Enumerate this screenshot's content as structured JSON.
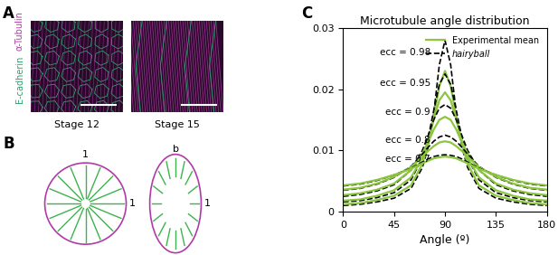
{
  "chart_data": {
    "type": "line",
    "title": "Microtubule angle distribution",
    "x_label": "Angle (º)",
    "x": [
      0,
      15,
      30,
      45,
      60,
      70,
      75,
      80,
      85,
      90,
      95,
      100,
      105,
      110,
      120,
      135,
      150,
      165,
      180
    ],
    "xlim": [
      0,
      180
    ],
    "xticks": [
      0,
      45,
      90,
      135,
      180
    ],
    "ylim": [
      0,
      0.03
    ],
    "yticks": [
      0,
      0.01,
      0.02,
      0.03
    ],
    "legend": "upper right",
    "annotations": [
      "ecc = 0.98",
      "ecc = 0.95",
      "ecc = 0.9",
      "ecc = 0.8",
      "ecc = 0.7"
    ],
    "series": [
      {
        "name": "hairyball",
        "color": "#000000",
        "line_style": "dashed",
        "values": [
          0.001,
          0.0012,
          0.0016,
          0.0022,
          0.0038,
          0.0072,
          0.0105,
          0.016,
          0.024,
          0.028,
          0.024,
          0.016,
          0.0105,
          0.0072,
          0.0038,
          0.0022,
          0.0016,
          0.0012,
          0.001
        ]
      },
      {
        "name": "Experimental mean",
        "color": "#8cc63f",
        "line_style": "solid",
        "values": [
          0.0012,
          0.0014,
          0.0019,
          0.0026,
          0.0043,
          0.0078,
          0.011,
          0.0155,
          0.0205,
          0.023,
          0.0205,
          0.0155,
          0.011,
          0.0078,
          0.0043,
          0.0026,
          0.0019,
          0.0014,
          0.0012
        ]
      },
      {
        "name": "hairyball",
        "color": "#000000",
        "line_style": "dashed",
        "values": [
          0.0016,
          0.0018,
          0.0023,
          0.0031,
          0.0052,
          0.0088,
          0.012,
          0.0165,
          0.0208,
          0.0225,
          0.0208,
          0.0165,
          0.012,
          0.0088,
          0.0052,
          0.0031,
          0.0023,
          0.0018,
          0.0016
        ]
      },
      {
        "name": "Experimental mean",
        "color": "#8cc63f",
        "line_style": "solid",
        "values": [
          0.0018,
          0.002,
          0.0026,
          0.0035,
          0.0056,
          0.0088,
          0.0115,
          0.015,
          0.0182,
          0.0195,
          0.0182,
          0.015,
          0.0115,
          0.0088,
          0.0056,
          0.0035,
          0.0026,
          0.002,
          0.0018
        ]
      },
      {
        "name": "hairyball",
        "color": "#000000",
        "line_style": "dashed",
        "values": [
          0.0025,
          0.0028,
          0.0034,
          0.0044,
          0.0068,
          0.01,
          0.0124,
          0.015,
          0.0169,
          0.0175,
          0.0169,
          0.015,
          0.0124,
          0.01,
          0.0068,
          0.0044,
          0.0034,
          0.0028,
          0.0025
        ]
      },
      {
        "name": "Experimental mean",
        "color": "#8cc63f",
        "line_style": "solid",
        "values": [
          0.0027,
          0.003,
          0.0036,
          0.0046,
          0.0068,
          0.0095,
          0.0113,
          0.0134,
          0.015,
          0.0155,
          0.015,
          0.0134,
          0.0113,
          0.0095,
          0.0068,
          0.0046,
          0.0036,
          0.003,
          0.0027
        ]
      },
      {
        "name": "hairyball",
        "color": "#000000",
        "line_style": "dashed",
        "values": [
          0.0035,
          0.0038,
          0.0045,
          0.0056,
          0.0074,
          0.0094,
          0.0105,
          0.0115,
          0.0122,
          0.0125,
          0.0122,
          0.0115,
          0.0105,
          0.0094,
          0.0074,
          0.0056,
          0.0045,
          0.0038,
          0.0035
        ]
      },
      {
        "name": "Experimental mean",
        "color": "#8cc63f",
        "line_style": "solid",
        "values": [
          0.0036,
          0.0039,
          0.0046,
          0.0057,
          0.0073,
          0.009,
          0.0099,
          0.0107,
          0.0113,
          0.0115,
          0.0113,
          0.0107,
          0.0099,
          0.009,
          0.0073,
          0.0057,
          0.0046,
          0.0039,
          0.0036
        ]
      },
      {
        "name": "hairyball",
        "color": "#000000",
        "line_style": "dashed",
        "values": [
          0.0042,
          0.0045,
          0.0051,
          0.006,
          0.0071,
          0.0081,
          0.0086,
          0.009,
          0.0092,
          0.0093,
          0.0092,
          0.009,
          0.0086,
          0.0081,
          0.0071,
          0.006,
          0.0051,
          0.0045,
          0.0042
        ]
      },
      {
        "name": "Experimental mean",
        "color": "#8cc63f",
        "line_style": "solid",
        "values": [
          0.0043,
          0.0046,
          0.0052,
          0.006,
          0.007,
          0.0079,
          0.0083,
          0.0087,
          0.0089,
          0.009,
          0.0089,
          0.0087,
          0.0083,
          0.0079,
          0.007,
          0.006,
          0.0052,
          0.0046,
          0.0043
        ]
      }
    ]
  },
  "panel_labels": [
    "A",
    "B",
    "C"
  ],
  "panel_a": {
    "channels": [
      {
        "name": "α-Tubulin",
        "color": "#b03aa8"
      },
      {
        "name": "E-cadherin",
        "color": "#2ca36b"
      }
    ],
    "images": [
      "Stage 12",
      "Stage 15"
    ]
  },
  "panel_b": {
    "circle_labels": [
      "1",
      "1"
    ],
    "ellipse_labels": [
      "b",
      "1"
    ]
  }
}
